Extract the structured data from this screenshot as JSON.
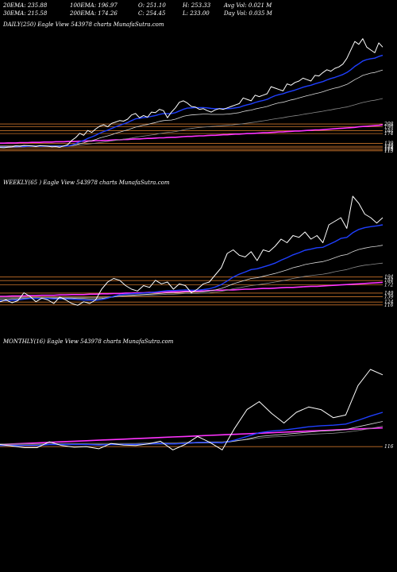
{
  "stats": {
    "row1": [
      "20EMA: 235.88",
      "100EMA: 196.97",
      "O: 251.10",
      "H: 253.33",
      "Avg Vol: 0.021 M"
    ],
    "row2": [
      "30EMA: 215.58",
      "200EMA: 174.26",
      "C: 254.45",
      "L: 233.00",
      "Day Vol: 0.035 M"
    ]
  },
  "colors": {
    "background": "#000000",
    "price": "#ffffff",
    "ema_fast": "#1f3fff",
    "ema_mid": "#d9d9d9",
    "ema_slow": "#8a8a8a",
    "ema_long": "#ff33ff",
    "level": "#c7722a"
  },
  "chart_data": [
    {
      "type": "line",
      "title": "DAILY(250) Eagle  View  543978  charts MunafaSutra.com",
      "levels": [
        208,
        198,
        184,
        174,
        139,
        129,
        124,
        118,
        113
      ],
      "series": [
        {
          "values": [
            125,
            124,
            126,
            127,
            130,
            129,
            132,
            131,
            130,
            128,
            131,
            130,
            129,
            127,
            128,
            126,
            130,
            135,
            150,
            160,
            175,
            168,
            185,
            178,
            190,
            200,
            205,
            198,
            210,
            215,
            220,
            218,
            225,
            240,
            245,
            230,
            238,
            232,
            250,
            248,
            260,
            255,
            230,
            250,
            265,
            285,
            290,
            282,
            270,
            268,
            260,
            262,
            255,
            250,
            258,
            262,
            260,
            265,
            270,
            275,
            280,
            300,
            295,
            290,
            310,
            305,
            310,
            315,
            340,
            335,
            330,
            325,
            350,
            345,
            355,
            360,
            370,
            365,
            360,
            380,
            378,
            390,
            400,
            395,
            405,
            410,
            420,
            440,
            470,
            500,
            490,
            510,
            480,
            470,
            460,
            495,
            480
          ]
        },
        {
          "values": [
            126,
            126,
            126,
            127,
            127,
            128,
            128,
            129,
            129,
            129,
            129,
            129,
            129,
            129,
            129,
            129,
            129,
            130,
            133,
            138,
            145,
            150,
            157,
            162,
            168,
            175,
            181,
            186,
            192,
            198,
            203,
            208,
            213,
            220,
            226,
            228,
            231,
            232,
            235,
            238,
            242,
            245,
            244,
            245,
            248,
            254,
            260,
            264,
            265,
            266,
            266,
            266,
            265,
            263,
            262,
            262,
            262,
            262,
            263,
            265,
            267,
            272,
            276,
            279,
            284,
            288,
            291,
            295,
            302,
            308,
            312,
            315,
            320,
            324,
            328,
            333,
            338,
            342,
            345,
            350,
            354,
            358,
            364,
            369,
            373,
            378,
            383,
            390,
            400,
            412,
            421,
            431,
            436,
            439,
            441,
            447,
            451
          ]
        },
        {
          "values": [
            128,
            128,
            128,
            128,
            128,
            128,
            129,
            129,
            129,
            129,
            129,
            129,
            129,
            129,
            129,
            129,
            129,
            129,
            131,
            134,
            138,
            141,
            146,
            149,
            153,
            158,
            162,
            166,
            170,
            175,
            179,
            183,
            187,
            192,
            197,
            200,
            204,
            206,
            210,
            213,
            217,
            220,
            221,
            222,
            225,
            230,
            235,
            238,
            240,
            241,
            242,
            243,
            243,
            242,
            242,
            242,
            242,
            243,
            244,
            246,
            248,
            252,
            255,
            257,
            261,
            264,
            267,
            270,
            275,
            279,
            283,
            285,
            289,
            293,
            296,
            300,
            304,
            308,
            311,
            315,
            318,
            322,
            327,
            331,
            335,
            338,
            343,
            348,
            356,
            365,
            372,
            380,
            384,
            388,
            390,
            395,
            399
          ]
        },
        {
          "values": [
            132,
            132,
            132,
            132,
            132,
            132,
            132,
            132,
            132,
            132,
            132,
            132,
            132,
            132,
            132,
            132,
            132,
            132,
            132,
            133,
            134,
            135,
            137,
            138,
            140,
            142,
            144,
            146,
            148,
            150,
            152,
            154,
            156,
            158,
            161,
            163,
            165,
            167,
            169,
            171,
            174,
            176,
            178,
            179,
            181,
            184,
            187,
            190,
            192,
            194,
            196,
            197,
            198,
            199,
            200,
            201,
            202,
            203,
            204,
            206,
            207,
            209,
            211,
            213,
            215,
            217,
            219,
            221,
            224,
            226,
            228,
            230,
            233,
            235,
            237,
            239,
            242,
            244,
            246,
            249,
            251,
            253,
            256,
            258,
            261,
            263,
            266,
            268,
            272,
            276,
            280,
            284,
            287,
            290,
            292,
            295,
            298
          ]
        },
        {
          "values": [
            140,
            140,
            141,
            141,
            141,
            142,
            142,
            142,
            143,
            143,
            143,
            144,
            144,
            144,
            145,
            145,
            145,
            146,
            146,
            146,
            147,
            147,
            148,
            148,
            149,
            149,
            150,
            150,
            151,
            152,
            152,
            153,
            153,
            154,
            155,
            155,
            156,
            157,
            157,
            158,
            159,
            159,
            160,
            161,
            161,
            162,
            163,
            164,
            164,
            165,
            166,
            166,
            167,
            168,
            168,
            169,
            170,
            170,
            171,
            172,
            172,
            173,
            174,
            174,
            175,
            176,
            177,
            177,
            178,
            179,
            180,
            180,
            181,
            182,
            183,
            183,
            184,
            185,
            186,
            187,
            187,
            188,
            189,
            190,
            191,
            192,
            193,
            194,
            195,
            196,
            198,
            199,
            200,
            201,
            202,
            203,
            205
          ]
        }
      ],
      "ylim": [
        90,
        540
      ]
    },
    {
      "type": "line",
      "title": "WEEKLY(65                                      ) Eagle  View  543978  charts MunafaSutra.com",
      "levels": [
        194,
        184,
        172,
        149,
        139,
        124,
        116
      ],
      "series": [
        {
          "values": [
            125,
            130,
            122,
            128,
            150,
            140,
            125,
            135,
            130,
            120,
            138,
            130,
            120,
            115,
            125,
            120,
            130,
            160,
            180,
            190,
            185,
            170,
            160,
            155,
            170,
            165,
            185,
            175,
            180,
            160,
            175,
            170,
            150,
            160,
            175,
            180,
            200,
            220,
            260,
            270,
            255,
            250,
            265,
            240,
            270,
            265,
            280,
            300,
            290,
            310,
            305,
            320,
            300,
            310,
            290,
            340,
            350,
            360,
            330,
            420,
            400,
            370,
            360,
            345,
            360
          ]
        },
        {
          "values": [
            128,
            128,
            129,
            130,
            132,
            134,
            134,
            134,
            134,
            133,
            133,
            133,
            132,
            131,
            130,
            129,
            129,
            131,
            135,
            140,
            144,
            146,
            147,
            148,
            149,
            150,
            152,
            154,
            156,
            156,
            157,
            158,
            157,
            157,
            159,
            161,
            166,
            173,
            183,
            194,
            202,
            208,
            215,
            217,
            222,
            227,
            233,
            241,
            248,
            256,
            262,
            269,
            272,
            276,
            277,
            285,
            293,
            302,
            305,
            318,
            327,
            332,
            335,
            337,
            340
          ]
        },
        {
          "values": [
            132,
            132,
            133,
            133,
            134,
            135,
            135,
            135,
            135,
            135,
            135,
            135,
            135,
            134,
            134,
            133,
            133,
            134,
            136,
            138,
            141,
            142,
            143,
            144,
            145,
            146,
            147,
            148,
            150,
            150,
            151,
            152,
            152,
            152,
            153,
            155,
            158,
            162,
            168,
            175,
            180,
            185,
            190,
            192,
            196,
            200,
            204,
            209,
            214,
            220,
            224,
            229,
            232,
            235,
            237,
            242,
            248,
            254,
            257,
            265,
            271,
            275,
            278,
            280,
            283
          ]
        },
        {
          "values": [
            136,
            136,
            136,
            136,
            137,
            137,
            137,
            137,
            137,
            137,
            137,
            137,
            137,
            137,
            137,
            137,
            137,
            137,
            138,
            139,
            140,
            141,
            141,
            142,
            143,
            143,
            144,
            145,
            146,
            146,
            147,
            148,
            148,
            148,
            149,
            150,
            152,
            154,
            157,
            161,
            164,
            167,
            170,
            172,
            175,
            177,
            180,
            183,
            186,
            190,
            193,
            196,
            198,
            200,
            202,
            205,
            209,
            212,
            215,
            220,
            224,
            227,
            229,
            231,
            233
          ]
        },
        {
          "values": [
            140,
            140,
            141,
            141,
            141,
            142,
            142,
            143,
            143,
            143,
            144,
            144,
            145,
            145,
            145,
            146,
            146,
            147,
            147,
            148,
            148,
            149,
            149,
            150,
            150,
            151,
            151,
            152,
            152,
            153,
            153,
            154,
            154,
            155,
            155,
            156,
            157,
            157,
            158,
            158,
            159,
            160,
            160,
            161,
            162,
            162,
            163,
            164,
            165,
            165,
            166,
            167,
            168,
            168,
            169,
            170,
            171,
            172,
            173,
            174,
            175,
            176,
            177,
            178,
            179
          ]
        }
      ],
      "ylim": [
        80,
        440
      ]
    },
    {
      "type": "line",
      "title": "MONTHLY(16) Eagle  View  543978  charts MunafaSutra.com",
      "levels": [
        116
      ],
      "series": [
        {
          "values": [
            120,
            117,
            114,
            114,
            125,
            118,
            115,
            116,
            112,
            122,
            119,
            118,
            121,
            126,
            110,
            120,
            135,
            124,
            110,
            150,
            185,
            200,
            178,
            160,
            180,
            190,
            185,
            170,
            175,
            230,
            260,
            250
          ]
        },
        {
          "values": [
            118,
            118,
            118,
            118,
            120,
            120,
            120,
            120,
            119,
            120,
            120,
            120,
            121,
            122,
            121,
            122,
            124,
            124,
            123,
            128,
            135,
            142,
            145,
            147,
            150,
            153,
            155,
            156,
            158,
            165,
            173,
            180
          ]
        },
        {
          "values": [
            119,
            119,
            119,
            119,
            120,
            120,
            120,
            120,
            120,
            120,
            120,
            120,
            121,
            121,
            121,
            122,
            123,
            123,
            123,
            126,
            130,
            135,
            137,
            139,
            141,
            143,
            145,
            146,
            148,
            153,
            158,
            163
          ]
        },
        {
          "values": [
            121,
            121,
            121,
            121,
            121,
            122,
            122,
            122,
            122,
            122,
            122,
            122,
            123,
            123,
            123,
            124,
            124,
            125,
            125,
            127,
            129,
            132,
            134,
            135,
            137,
            139,
            140,
            141,
            143,
            146,
            150,
            154
          ]
        },
        {
          "values": [
            120,
            121,
            122,
            123,
            124,
            125,
            126,
            127,
            128,
            129,
            130,
            131,
            132,
            133,
            134,
            135,
            136,
            137,
            138,
            139,
            140,
            141,
            142,
            143,
            144,
            145,
            146,
            147,
            148,
            149,
            150,
            151
          ]
        }
      ],
      "ylim": [
        60,
        300
      ]
    }
  ]
}
